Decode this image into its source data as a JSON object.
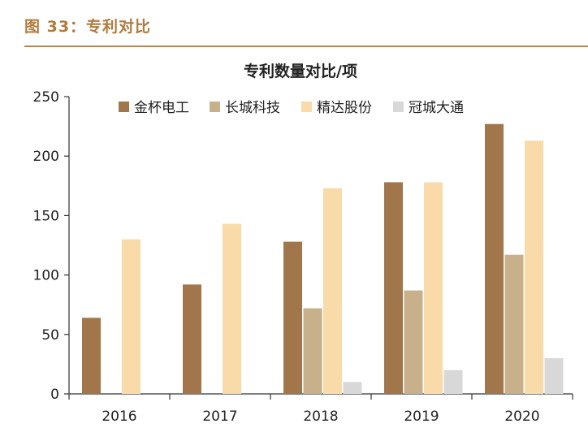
{
  "figure_label": "图 33：专利对比",
  "chart_data": {
    "type": "bar",
    "title": "专利数量对比/项",
    "categories": [
      "2016",
      "2017",
      "2018",
      "2019",
      "2020"
    ],
    "ylim": [
      0,
      250
    ],
    "yticks": [
      0,
      50,
      100,
      150,
      200,
      250
    ],
    "grid": false,
    "legend_position": "top",
    "series": [
      {
        "name": "金杯电工",
        "color": "#a0764a",
        "values": [
          64,
          92,
          128,
          178,
          227
        ]
      },
      {
        "name": "长城科技",
        "color": "#c8b08a",
        "values": [
          0,
          0,
          72,
          87,
          117
        ]
      },
      {
        "name": "精达股份",
        "color": "#f8dba8",
        "values": [
          130,
          143,
          173,
          178,
          213
        ]
      },
      {
        "name": "冠城大通",
        "color": "#d8d8d8",
        "values": [
          0,
          0,
          10,
          20,
          30
        ]
      }
    ]
  }
}
